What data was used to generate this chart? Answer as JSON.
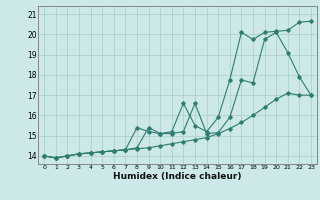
{
  "xlabel": "Humidex (Indice chaleur)",
  "background_color": "#cce8e8",
  "grid_color": "#b0d0d0",
  "line_color": "#2e7d6e",
  "xlim": [
    -0.5,
    23.5
  ],
  "ylim": [
    13.6,
    21.4
  ],
  "xticks": [
    0,
    1,
    2,
    3,
    4,
    5,
    6,
    7,
    8,
    9,
    10,
    11,
    12,
    13,
    14,
    15,
    16,
    17,
    18,
    19,
    20,
    21,
    22,
    23
  ],
  "yticks": [
    14,
    15,
    16,
    17,
    18,
    19,
    20,
    21
  ],
  "line1_x": [
    0,
    1,
    2,
    3,
    4,
    5,
    6,
    7,
    8,
    9,
    10,
    11,
    12,
    13,
    14,
    15,
    16,
    17,
    18,
    19,
    20,
    21,
    22,
    23
  ],
  "line1_y": [
    14.0,
    13.9,
    14.0,
    14.1,
    14.15,
    14.2,
    14.25,
    14.3,
    14.4,
    15.4,
    15.1,
    15.1,
    15.2,
    16.6,
    15.1,
    15.15,
    15.9,
    17.75,
    17.6,
    19.75,
    20.1,
    19.1,
    17.9,
    17.0
  ],
  "line2_x": [
    0,
    1,
    2,
    3,
    4,
    5,
    6,
    7,
    8,
    9,
    10,
    11,
    12,
    13,
    14,
    15,
    16,
    17,
    18,
    19,
    20,
    21,
    22,
    23
  ],
  "line2_y": [
    14.0,
    13.9,
    14.0,
    14.1,
    14.15,
    14.2,
    14.25,
    14.3,
    14.35,
    14.4,
    14.5,
    14.6,
    14.7,
    14.8,
    14.9,
    15.1,
    15.35,
    15.65,
    16.0,
    16.4,
    16.8,
    17.1,
    17.0,
    17.0
  ],
  "line3_x": [
    0,
    1,
    2,
    3,
    4,
    5,
    6,
    7,
    8,
    9,
    10,
    11,
    12,
    13,
    14,
    15,
    16,
    17,
    18,
    19,
    20,
    21,
    22,
    23
  ],
  "line3_y": [
    14.0,
    13.9,
    14.0,
    14.1,
    14.15,
    14.2,
    14.25,
    14.3,
    15.4,
    15.2,
    15.1,
    15.2,
    16.6,
    15.5,
    15.2,
    15.9,
    17.75,
    20.1,
    19.75,
    20.1,
    20.15,
    20.2,
    20.6,
    20.65
  ]
}
